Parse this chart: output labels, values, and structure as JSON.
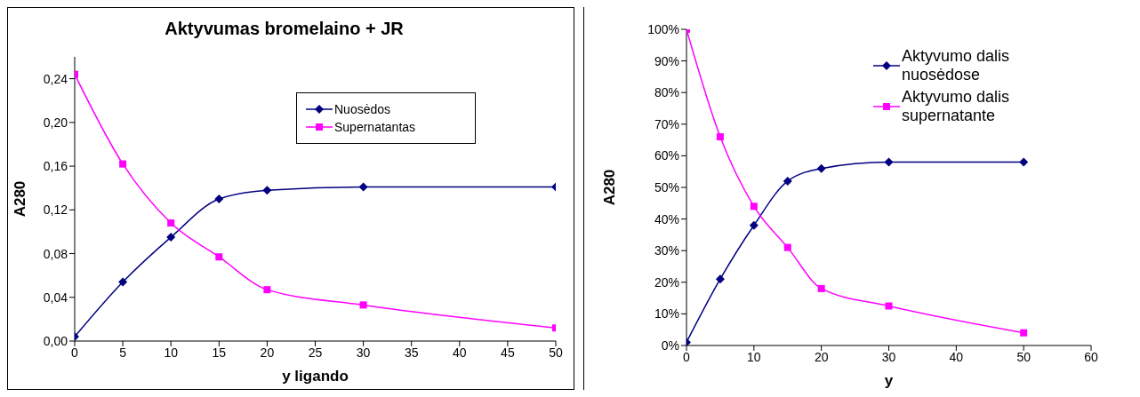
{
  "chart_data": [
    {
      "type": "line",
      "title": "Aktyvumas bromelaino + JR",
      "xlabel": "y ligando",
      "ylabel": "A280",
      "x": [
        0,
        5,
        10,
        15,
        20,
        30,
        50
      ],
      "xlim": [
        0,
        50
      ],
      "xticks": [
        0,
        5,
        10,
        15,
        20,
        25,
        30,
        35,
        40,
        45,
        50
      ],
      "ylim": [
        0,
        0.26
      ],
      "yticks": [
        {
          "value": 0,
          "label": "0,00"
        },
        {
          "value": 0.04,
          "label": "0,04"
        },
        {
          "value": 0.08,
          "label": "0,08"
        },
        {
          "value": 0.12,
          "label": "0,12"
        },
        {
          "value": 0.16,
          "label": "0,16"
        },
        {
          "value": 0.2,
          "label": "0,20"
        },
        {
          "value": 0.24,
          "label": "0,24"
        }
      ],
      "legend": "top right",
      "grid": false,
      "series": [
        {
          "name": "Nuosėdos",
          "color": "#000080",
          "marker": "diamond",
          "values": [
            0.004,
            0.054,
            0.095,
            0.13,
            0.138,
            0.141,
            0.141
          ]
        },
        {
          "name": "Supernatantas",
          "color": "#ff00ff",
          "marker": "square",
          "values": [
            0.244,
            0.162,
            0.108,
            0.077,
            0.047,
            0.033,
            0.012
          ]
        }
      ]
    },
    {
      "type": "line",
      "xlabel": "y",
      "ylabel": "A280",
      "x": [
        0,
        5,
        10,
        15,
        20,
        30,
        50
      ],
      "xlim": [
        0,
        60
      ],
      "xticks": [
        0,
        10,
        20,
        30,
        40,
        50,
        60
      ],
      "ylim": [
        0,
        100
      ],
      "yticks": [
        {
          "value": 0,
          "label": "0%"
        },
        {
          "value": 10,
          "label": "10%"
        },
        {
          "value": 20,
          "label": "20%"
        },
        {
          "value": 30,
          "label": "30%"
        },
        {
          "value": 40,
          "label": "40%"
        },
        {
          "value": 50,
          "label": "50%"
        },
        {
          "value": 60,
          "label": "60%"
        },
        {
          "value": 70,
          "label": "70%"
        },
        {
          "value": 80,
          "label": "80%"
        },
        {
          "value": 90,
          "label": "90%"
        },
        {
          "value": 100,
          "label": "100%"
        }
      ],
      "legend": "top right",
      "grid": false,
      "series": [
        {
          "name": "Aktyvumo dalis nuosėdose",
          "color": "#000080",
          "marker": "diamond",
          "values": [
            1,
            21,
            38,
            52,
            56,
            58,
            58
          ]
        },
        {
          "name": "Aktyvumo dalis supernatante",
          "color": "#ff00ff",
          "marker": "square",
          "values": [
            100,
            66,
            44,
            31,
            18,
            12.5,
            4
          ]
        }
      ]
    }
  ]
}
